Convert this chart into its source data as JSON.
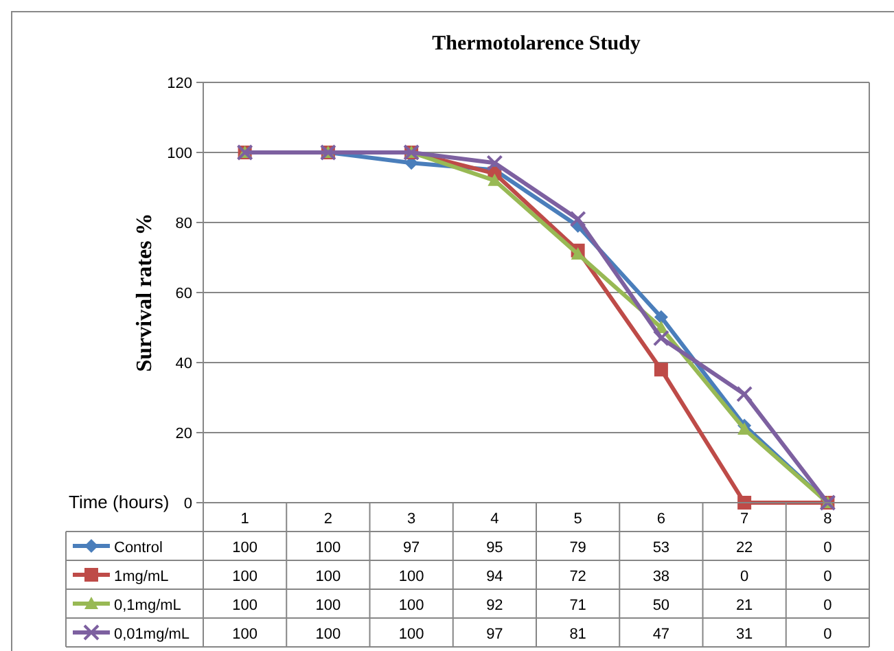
{
  "chart_data": {
    "type": "line",
    "title": "Thermotolarence Study",
    "xlabel": "Time (hours)",
    "ylabel": "Survival rates %",
    "categories": [
      "1",
      "2",
      "3",
      "4",
      "5",
      "6",
      "7",
      "8"
    ],
    "series": [
      {
        "name": "Control",
        "color": "#4a7ebb",
        "marker": "diamond",
        "values": [
          100,
          100,
          97,
          95,
          79,
          53,
          22,
          0
        ]
      },
      {
        "name": "1mg/mL",
        "color": "#be4b48",
        "marker": "square",
        "values": [
          100,
          100,
          100,
          94,
          72,
          38,
          0,
          0
        ]
      },
      {
        "name": "0,1mg/mL",
        "color": "#98b954",
        "marker": "triangle",
        "values": [
          100,
          100,
          100,
          92,
          71,
          50,
          21,
          0
        ]
      },
      {
        "name": "0,01mg/mL",
        "color": "#7d60a0",
        "marker": "cross",
        "values": [
          100,
          100,
          100,
          97,
          81,
          47,
          31,
          0
        ]
      }
    ],
    "ylim": [
      0,
      120
    ],
    "yticks": [
      0,
      20,
      40,
      60,
      80,
      100,
      120
    ],
    "grid": "y",
    "legend": "bottom",
    "data_labels": true
  }
}
